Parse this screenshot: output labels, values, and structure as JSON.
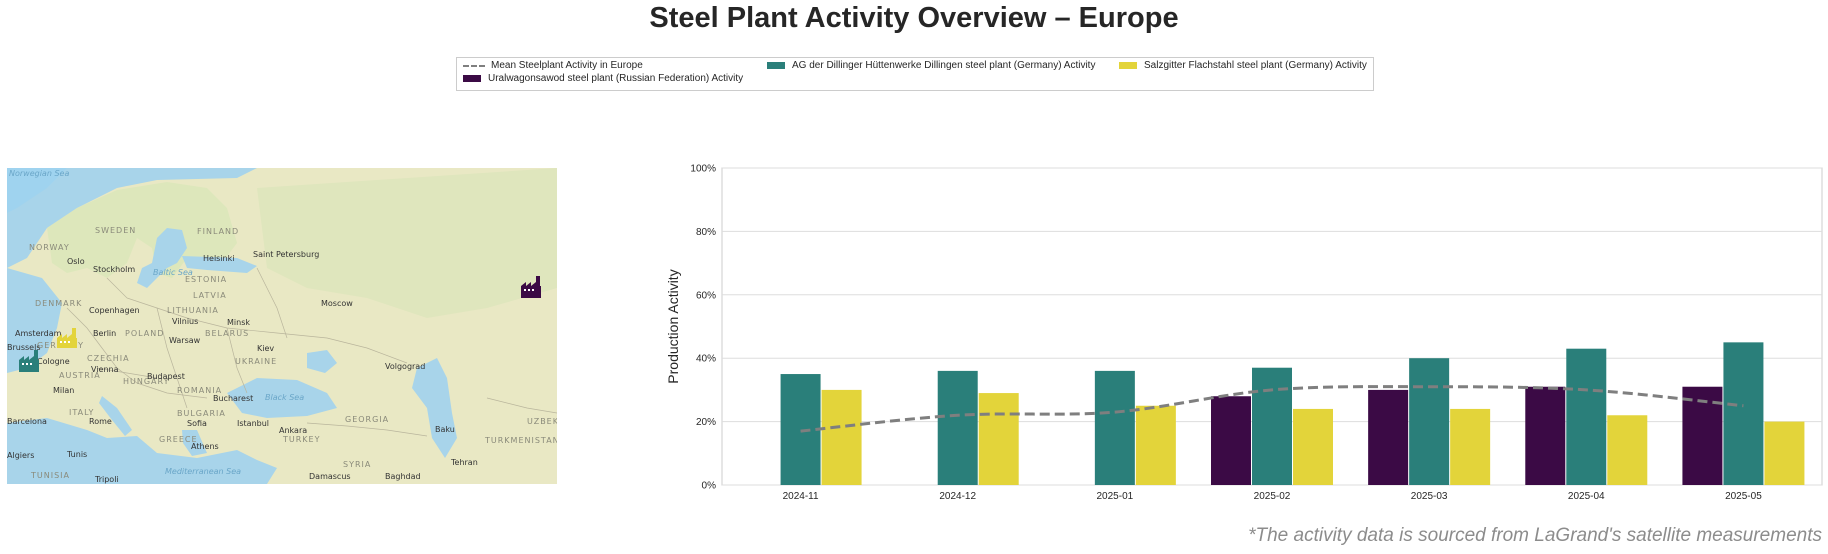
{
  "title": "Steel Plant Activity Overview – Europe",
  "footnote": "*The activity data is sourced from LaGrand's satellite measurements",
  "legend": {
    "mean": "Mean Steelplant Activity in Europe",
    "ural": "Uralwagonsawod steel plant (Russian Federation) Activity",
    "dillinger": "AG der Dillinger Hüttenwerke Dillingen steel plant (Germany) Activity",
    "salzgitter": "Salzgitter Flachstahl steel plant (Germany) Activity"
  },
  "colors": {
    "ural": "#3b0a45",
    "dillinger": "#2a7f7a",
    "salzgitter": "#e3d43a",
    "mean": "#7f7f7f"
  },
  "map": {
    "seas": [
      "Norwegian Sea",
      "Baltic Sea",
      "Black Sea",
      "Mediterranean Sea"
    ],
    "countries": [
      "SWEDEN",
      "FINLAND",
      "NORWAY",
      "ESTONIA",
      "LATVIA",
      "DENMARK",
      "LITHUANIA",
      "BELARUS",
      "POLAND",
      "GERMANY",
      "CZECHIA",
      "UKRAINE",
      "AUSTRIA",
      "HUNGARY",
      "ROMANIA",
      "ITALY",
      "BULGARIA",
      "GREECE",
      "TURKEY",
      "GEORGIA",
      "SYRIA",
      "TURKMENISTAN",
      "TUNISIA",
      "UZBEK"
    ],
    "cities": [
      "Oslo",
      "Stockholm",
      "Helsinki",
      "Saint Petersburg",
      "Copenhagen",
      "Vilnius",
      "Minsk",
      "Moscow",
      "Amsterdam",
      "Berlin",
      "Warsaw",
      "Kiev",
      "Volgograd",
      "Vienna",
      "Budapest",
      "Milan",
      "Bucharest",
      "Rome",
      "Sofia",
      "Istanbul",
      "Ankara",
      "Baku",
      "Athens",
      "Tunis",
      "Tripoli",
      "Damascus",
      "Baghdad",
      "Tehran",
      "Cologne",
      "Milan",
      "Barcelona",
      "Algiers",
      "Brussels"
    ]
  },
  "chart_data": {
    "type": "bar",
    "categories": [
      "2024-11",
      "2024-12",
      "2025-01",
      "2025-02",
      "2025-03",
      "2025-04",
      "2025-05"
    ],
    "ylabel": "Production Activity",
    "xlabel": "",
    "ylim": [
      0,
      100
    ],
    "yticks": [
      "0%",
      "20%",
      "40%",
      "60%",
      "80%",
      "100%"
    ],
    "grid": "horizontal",
    "series": [
      {
        "name": "Uralwagonsawod steel plant (Russian Federation) Activity",
        "key": "ural",
        "values": [
          null,
          null,
          null,
          28,
          30,
          31,
          31
        ]
      },
      {
        "name": "AG der Dillinger Hüttenwerke Dillingen steel plant (Germany) Activity",
        "key": "dillinger",
        "values": [
          35,
          36,
          36,
          37,
          40,
          43,
          45
        ]
      },
      {
        "name": "Salzgitter Flachstahl steel plant (Germany) Activity",
        "key": "salzgitter",
        "values": [
          30,
          29,
          25,
          24,
          24,
          22,
          20
        ]
      }
    ],
    "mean_line": {
      "name": "Mean Steelplant Activity in Europe",
      "values": [
        17,
        22,
        23,
        30,
        31,
        30,
        25
      ]
    }
  }
}
